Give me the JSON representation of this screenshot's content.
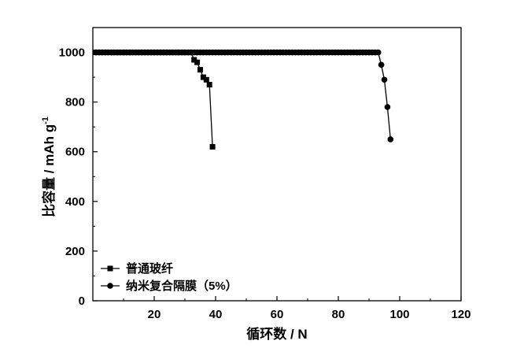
{
  "chart_data": {
    "type": "line",
    "title": "",
    "xlabel": "循环数 / N",
    "ylabel_main": "比容量 / mAh g",
    "ylabel_sup": "-1",
    "xlim": [
      0,
      120
    ],
    "ylim": [
      0,
      1100
    ],
    "x_ticks": [
      20,
      40,
      60,
      80,
      100,
      120
    ],
    "y_ticks": [
      0,
      200,
      400,
      600,
      800,
      1000
    ],
    "grid": false,
    "legend_position": "bottom-left",
    "series": [
      {
        "name": "普通玻纤",
        "marker": "square",
        "color": "#000000",
        "x": [
          1,
          2,
          3,
          4,
          5,
          6,
          7,
          8,
          9,
          10,
          11,
          12,
          13,
          14,
          15,
          16,
          17,
          18,
          19,
          20,
          21,
          22,
          23,
          24,
          25,
          26,
          27,
          28,
          29,
          30,
          31,
          32,
          33,
          34,
          35,
          36,
          37,
          38,
          39
        ],
        "y": [
          1000,
          1000,
          1000,
          1000,
          1000,
          1000,
          1000,
          1000,
          1000,
          1000,
          1000,
          1000,
          1000,
          1000,
          1000,
          1000,
          1000,
          1000,
          1000,
          1000,
          1000,
          1000,
          1000,
          1000,
          1000,
          1000,
          1000,
          1000,
          1000,
          1000,
          1000,
          1000,
          970,
          960,
          930,
          900,
          890,
          870,
          620
        ]
      },
      {
        "name": "纳米复合隔膜（5%）",
        "marker": "circle",
        "color": "#000000",
        "x": [
          1,
          2,
          3,
          4,
          5,
          6,
          7,
          8,
          9,
          10,
          11,
          12,
          13,
          14,
          15,
          16,
          17,
          18,
          19,
          20,
          21,
          22,
          23,
          24,
          25,
          26,
          27,
          28,
          29,
          30,
          31,
          32,
          33,
          34,
          35,
          36,
          37,
          38,
          39,
          40,
          41,
          42,
          43,
          44,
          45,
          46,
          47,
          48,
          49,
          50,
          51,
          52,
          53,
          54,
          55,
          56,
          57,
          58,
          59,
          60,
          61,
          62,
          63,
          64,
          65,
          66,
          67,
          68,
          69,
          70,
          71,
          72,
          73,
          74,
          75,
          76,
          77,
          78,
          79,
          80,
          81,
          82,
          83,
          84,
          85,
          86,
          87,
          88,
          89,
          90,
          91,
          92,
          93,
          94,
          95,
          96,
          97
        ],
        "y": [
          1000,
          1000,
          1000,
          1000,
          1000,
          1000,
          1000,
          1000,
          1000,
          1000,
          1000,
          1000,
          1000,
          1000,
          1000,
          1000,
          1000,
          1000,
          1000,
          1000,
          1000,
          1000,
          1000,
          1000,
          1000,
          1000,
          1000,
          1000,
          1000,
          1000,
          1000,
          1000,
          1000,
          1000,
          1000,
          1000,
          1000,
          1000,
          1000,
          1000,
          1000,
          1000,
          1000,
          1000,
          1000,
          1000,
          1000,
          1000,
          1000,
          1000,
          1000,
          1000,
          1000,
          1000,
          1000,
          1000,
          1000,
          1000,
          1000,
          1000,
          1000,
          1000,
          1000,
          1000,
          1000,
          1000,
          1000,
          1000,
          1000,
          1000,
          1000,
          1000,
          1000,
          1000,
          1000,
          1000,
          1000,
          1000,
          1000,
          1000,
          1000,
          1000,
          1000,
          1000,
          1000,
          1000,
          1000,
          1000,
          1000,
          1000,
          1000,
          1000,
          1000,
          950,
          890,
          780,
          650
        ]
      }
    ]
  }
}
